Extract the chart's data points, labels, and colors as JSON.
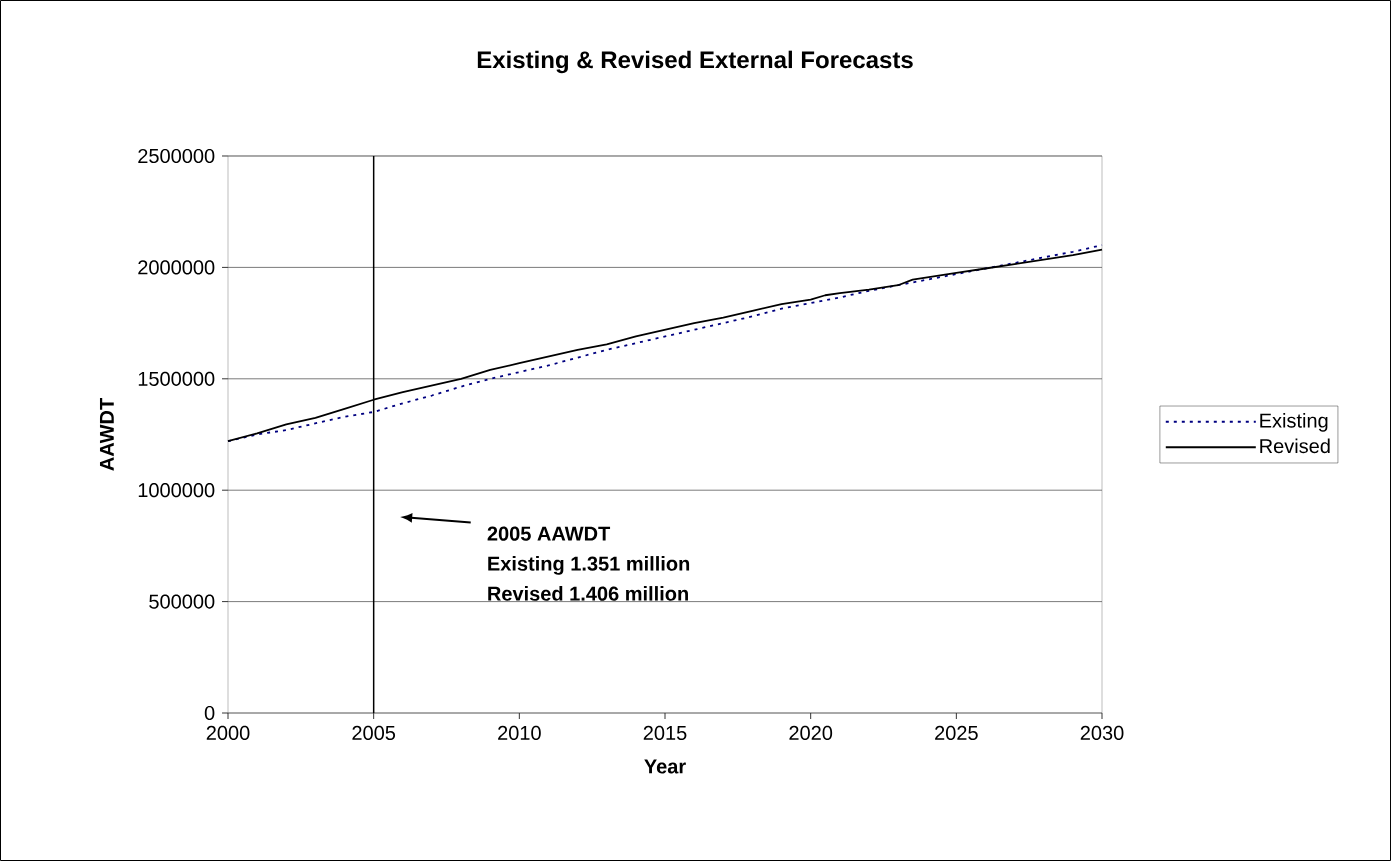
{
  "chart_data": {
    "type": "line",
    "title": "Existing & Revised External Forecasts",
    "xlabel": "Year",
    "ylabel": "AAWDT",
    "xlim": [
      2000,
      2030
    ],
    "xticks": [
      2000,
      2005,
      2010,
      2015,
      2020,
      2025,
      2030
    ],
    "ylim": [
      0,
      2500000
    ],
    "yticks": [
      0,
      500000,
      1000000,
      1500000,
      2000000,
      2500000
    ],
    "grid": "y",
    "legend": "right",
    "series": [
      {
        "name": "Existing",
        "color": "#000080",
        "line_style": "dotted",
        "x": [
          2000,
          2001,
          2002,
          2003,
          2004,
          2005,
          2006,
          2007,
          2008,
          2009,
          2010,
          2011,
          2012,
          2013,
          2014,
          2015,
          2016,
          2017,
          2018,
          2019,
          2020,
          2021,
          2022,
          2023,
          2024,
          2025,
          2026,
          2027,
          2028,
          2029,
          2030
        ],
        "values": [
          1220000,
          1250000,
          1270000,
          1300000,
          1330000,
          1351000,
          1390000,
          1425000,
          1465000,
          1500000,
          1530000,
          1560000,
          1595000,
          1630000,
          1660000,
          1690000,
          1720000,
          1750000,
          1780000,
          1815000,
          1840000,
          1865000,
          1895000,
          1920000,
          1945000,
          1970000,
          1995000,
          2020000,
          2045000,
          2070000,
          2100000
        ]
      },
      {
        "name": "Revised",
        "color": "#000000",
        "line_style": "solid",
        "x": [
          2000,
          2001,
          2002,
          2003,
          2004,
          2005,
          2006,
          2007,
          2008,
          2009,
          2010,
          2011,
          2012,
          2013,
          2014,
          2015,
          2016,
          2017,
          2018,
          2019,
          2020,
          2020.5,
          2021,
          2022,
          2023,
          2023.5,
          2025,
          2026,
          2027,
          2028,
          2029,
          2030
        ],
        "values": [
          1220000,
          1255000,
          1295000,
          1325000,
          1365000,
          1406000,
          1440000,
          1470000,
          1500000,
          1540000,
          1570000,
          1600000,
          1630000,
          1655000,
          1690000,
          1720000,
          1750000,
          1775000,
          1805000,
          1835000,
          1855000,
          1875000,
          1885000,
          1900000,
          1920000,
          1945000,
          1975000,
          1995000,
          2015000,
          2035000,
          2055000,
          2080000
        ]
      }
    ],
    "ref_lines": [
      {
        "axis": "x",
        "value": 2005,
        "color": "#000000"
      }
    ],
    "annotations": [
      "2005 AAWDT",
      "Existing 1.351 million",
      "Revised 1.406 million"
    ]
  }
}
